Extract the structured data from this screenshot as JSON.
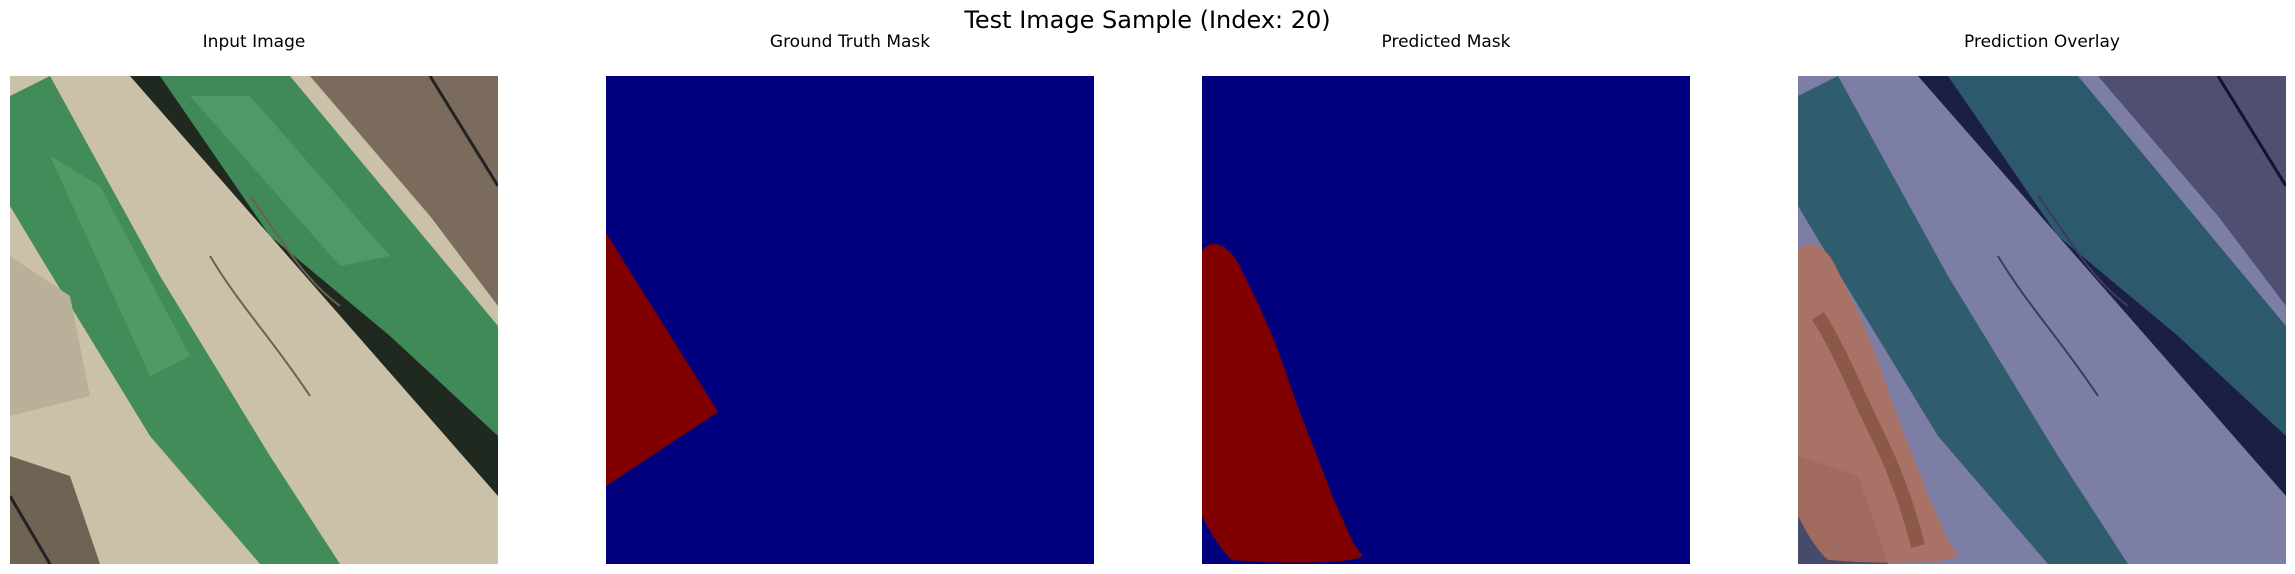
{
  "figure": {
    "title": "Test Image Sample (Index: 20)"
  },
  "panels": [
    {
      "title": "Input Image"
    },
    {
      "title": "Ground Truth Mask"
    },
    {
      "title": "Predicted Mask"
    },
    {
      "title": "Prediction Overlay"
    }
  ],
  "colors": {
    "background_class": "#00007f",
    "foreground_class": "#800000",
    "soil": "#c9bda5",
    "foliage": "#3f8a58",
    "shadow": "#1f2a1e"
  }
}
